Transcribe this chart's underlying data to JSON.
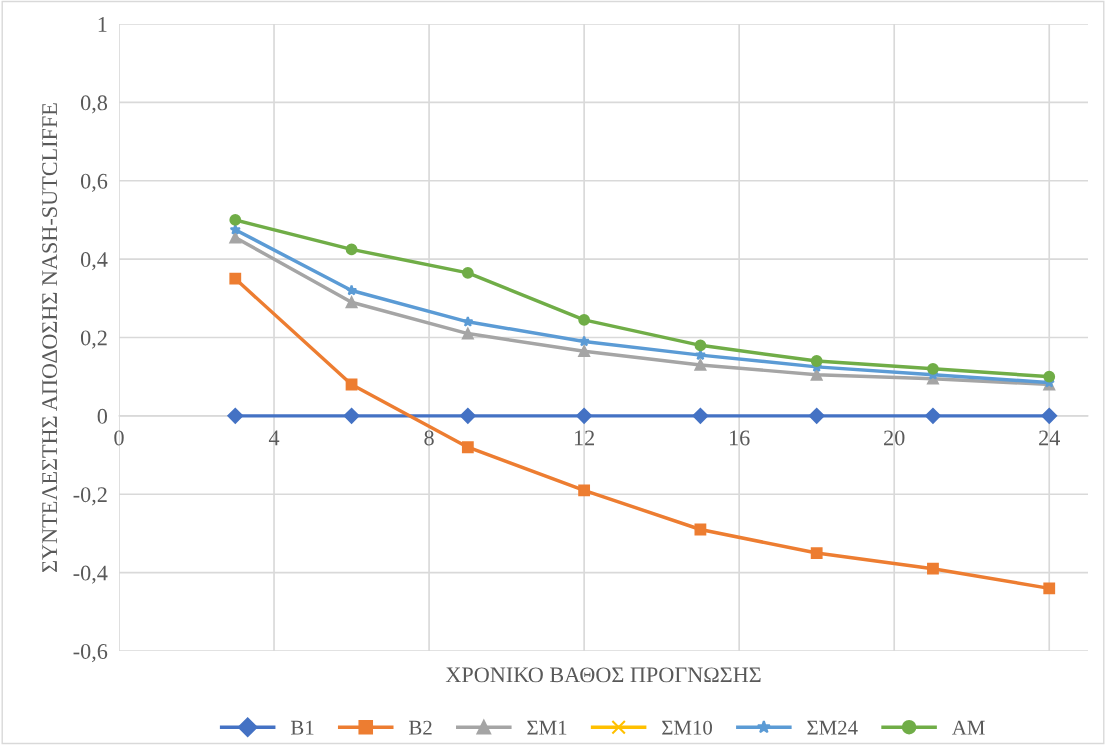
{
  "chart_data": {
    "type": "line",
    "xlabel": "ΧΡΟΝΙΚΟ ΒΑΘΟΣ ΠΡΟΓΝΩΣΗΣ",
    "ylabel": "ΣΥΝΤΕΛΕΣΤΗΣ ΑΠΟΔΟΣΗΣ NASH-SUTCLIFFE",
    "x": [
      3,
      6,
      9,
      12,
      15,
      18,
      21,
      24
    ],
    "series": [
      {
        "name": "Β1",
        "color": "#4472c4",
        "marker": "diamond",
        "values": [
          0,
          0,
          0,
          0,
          0,
          0,
          0,
          0
        ]
      },
      {
        "name": "Β2",
        "color": "#ed7d31",
        "marker": "square",
        "values": [
          0.35,
          0.08,
          -0.08,
          -0.19,
          -0.29,
          -0.35,
          -0.39,
          -0.44
        ]
      },
      {
        "name": "ΣΜ1",
        "color": "#a5a5a5",
        "marker": "triangle",
        "values": [
          0.455,
          0.29,
          0.21,
          0.165,
          0.13,
          0.105,
          0.095,
          0.08
        ]
      },
      {
        "name": "ΣΜ10",
        "color": "#ffc000",
        "marker": "cross",
        "values": [
          null,
          null,
          null,
          null,
          null,
          null,
          null,
          null
        ]
      },
      {
        "name": "ΣΜ24",
        "color": "#5b9bd5",
        "marker": "star",
        "values": [
          0.475,
          0.32,
          0.24,
          0.19,
          0.155,
          0.125,
          0.105,
          0.085
        ]
      },
      {
        "name": "ΑΜ",
        "color": "#70ad47",
        "marker": "circle",
        "values": [
          0.5,
          0.425,
          0.365,
          0.245,
          0.18,
          0.14,
          0.12,
          0.1
        ]
      }
    ],
    "xlim": [
      0,
      25
    ],
    "xticks": [
      0,
      4,
      8,
      12,
      16,
      20,
      24
    ],
    "ylim": [
      -0.6,
      1
    ],
    "yticks": [
      {
        "value": -0.6,
        "label": "-0,6"
      },
      {
        "value": -0.4,
        "label": "-0,4"
      },
      {
        "value": -0.2,
        "label": "-0,2"
      },
      0,
      {
        "value": 0.2,
        "label": "0,2"
      },
      {
        "value": 0.4,
        "label": "0,4"
      },
      {
        "value": 0.6,
        "label": "0,6"
      },
      {
        "value": 0.8,
        "label": "0,8"
      },
      1
    ],
    "grid": true,
    "legend": "bottom",
    "line_style": "solid"
  }
}
